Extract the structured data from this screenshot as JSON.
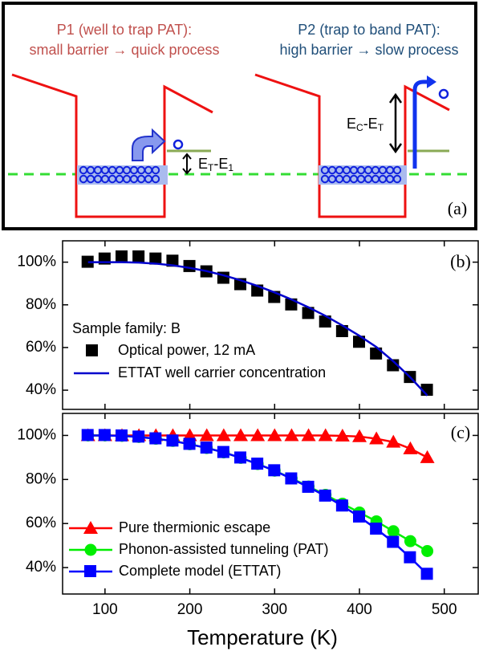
{
  "diagram": {
    "p1_title": "P1 (well to trap PAT):",
    "p1_subtitle": "small barrier → quick process",
    "p2_title": "P2 (trap to band PAT):",
    "p2_subtitle": "high barrier → slow process",
    "p1_energy_parts": [
      "E",
      "T",
      "-E",
      "1"
    ],
    "p2_energy_parts": [
      "E",
      "C",
      "-E",
      "T"
    ],
    "panel_label": "(a)"
  },
  "chart_data": [
    {
      "type": "line",
      "panel_label": "(b)",
      "annotation": "Sample family: B",
      "x": [
        80,
        100,
        120,
        140,
        160,
        180,
        200,
        220,
        240,
        260,
        280,
        300,
        320,
        340,
        360,
        380,
        400,
        420,
        440,
        460,
        480
      ],
      "xlim": [
        50,
        540
      ],
      "xticks": [
        100,
        200,
        300,
        400,
        500
      ],
      "ylim": [
        31,
        110
      ],
      "yticks": [
        {
          "value": 40,
          "label": "40%"
        },
        {
          "value": 60,
          "label": "60%"
        },
        {
          "value": 80,
          "label": "80%"
        },
        {
          "value": 100,
          "label": "100%"
        }
      ],
      "series": [
        {
          "name": "Optical power, 12 mA",
          "color": "#000000",
          "marker": "square",
          "line": false,
          "values": [
            100,
            101.5,
            102.5,
            102.5,
            101.5,
            100.5,
            98,
            95.5,
            92.5,
            89.5,
            86.5,
            83.5,
            80,
            76,
            72,
            67.5,
            62.5,
            57,
            51.5,
            46,
            40
          ]
        },
        {
          "name": "ETTAT well carrier concentration",
          "color": "#0000cc",
          "marker": "none",
          "line": true,
          "values": [
            100,
            100,
            100,
            99.8,
            99.3,
            98.5,
            97.3,
            95.8,
            93.8,
            91.5,
            88.8,
            85.8,
            82.5,
            78.8,
            74.8,
            70.3,
            65.5,
            60.2,
            53.5,
            46,
            37.5
          ]
        }
      ]
    },
    {
      "type": "line",
      "panel_label": "(c)",
      "x_label": "Temperature (K)",
      "x": [
        80,
        100,
        120,
        140,
        160,
        180,
        200,
        220,
        240,
        260,
        280,
        300,
        320,
        340,
        360,
        380,
        400,
        420,
        440,
        460,
        480
      ],
      "xlim": [
        50,
        540
      ],
      "xticks": [
        100,
        200,
        300,
        400,
        500
      ],
      "ylim": [
        28,
        110
      ],
      "yticks": [
        {
          "value": 40,
          "label": "40%"
        },
        {
          "value": 60,
          "label": "60%"
        },
        {
          "value": 80,
          "label": "80%"
        },
        {
          "value": 100,
          "label": "100%"
        }
      ],
      "series": [
        {
          "name": "Pure thermionic escape",
          "color": "#ff0000",
          "marker": "triangle",
          "line": true,
          "values": [
            100,
            100,
            100,
            100,
            100,
            100,
            100,
            100,
            100,
            100,
            100,
            100,
            100,
            100,
            100,
            99.8,
            99.5,
            98.5,
            97,
            94,
            90
          ]
        },
        {
          "name": "Phonon-assisted tunneling (PAT)",
          "color": "#00ee00",
          "marker": "circle",
          "line": true,
          "values": [
            100,
            100,
            99.8,
            99.3,
            98.5,
            97.5,
            96,
            94.3,
            92.3,
            89.8,
            87,
            84,
            80.5,
            76.8,
            73,
            69,
            65,
            61,
            56.5,
            52,
            47.5
          ]
        },
        {
          "name": "Complete model (ETTAT)",
          "color": "#0000ff",
          "marker": "square",
          "line": true,
          "values": [
            100,
            100,
            99.8,
            99.3,
            98.5,
            97.5,
            96,
            94.3,
            92.3,
            89.8,
            87,
            84,
            80.3,
            76.5,
            72.5,
            68,
            63,
            57.5,
            51.5,
            44.5,
            37
          ]
        }
      ]
    }
  ]
}
